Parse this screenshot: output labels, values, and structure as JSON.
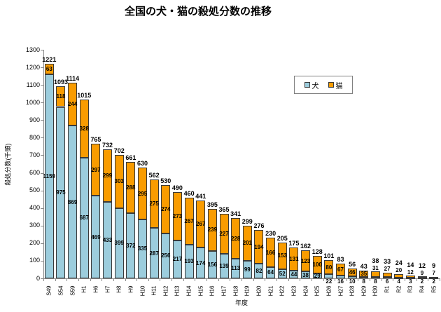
{
  "chart_data": {
    "type": "bar",
    "stacked": true,
    "title": "全国の犬・猫の殺処分数の推移",
    "xlabel": "年度",
    "ylabel": "殺処分数(千頭)",
    "ylim": [
      0,
      1300
    ],
    "ytick_step": 100,
    "grid": false,
    "legend": {
      "position": "inside-top-right",
      "entries": [
        "犬",
        "猫"
      ]
    },
    "categories": [
      "S49",
      "S54",
      "S59",
      "H1",
      "H6",
      "H7",
      "H8",
      "H9",
      "H10",
      "H11",
      "H12",
      "H13",
      "H14",
      "H15",
      "H16",
      "H17",
      "H18",
      "H19",
      "H20",
      "H21",
      "H22",
      "H23",
      "H24",
      "H25",
      "H26",
      "H27",
      "H28",
      "H29",
      "H30",
      "R1",
      "R2",
      "R3",
      "R4",
      "R5"
    ],
    "series": [
      {
        "name": "犬",
        "color": "#9CCDDD",
        "values": [
          1159,
          975,
          869,
          687,
          469,
          433,
          399,
          372,
          335,
          287,
          256,
          217,
          193,
          174,
          156,
          139,
          113,
          99,
          82,
          64,
          52,
          44,
          38,
          29,
          22,
          16,
          10,
          8,
          8,
          6,
          4,
          3,
          2,
          2
        ]
      },
      {
        "name": "猫",
        "color": "#F99C00",
        "values": [
          63,
          118,
          244,
          328,
          297,
          299,
          303,
          288,
          295,
          275,
          274,
          273,
          267,
          267,
          239,
          227,
          228,
          201,
          194,
          166,
          153,
          131,
          123,
          100,
          80,
          67,
          46,
          35,
          31,
          27,
          20,
          12,
          9,
          7
        ]
      }
    ],
    "totals": [
      1221,
      1093,
      1114,
      1015,
      765,
      732,
      702,
      661,
      630,
      562,
      530,
      490,
      460,
      441,
      395,
      365,
      341,
      299,
      276,
      230,
      205,
      175,
      162,
      128,
      101,
      83,
      56,
      43,
      38,
      33,
      24,
      14,
      12,
      9
    ],
    "colors": {
      "bar_border": "#3A3A3A",
      "axis": "#8A8A8A",
      "text": "#000000"
    }
  }
}
